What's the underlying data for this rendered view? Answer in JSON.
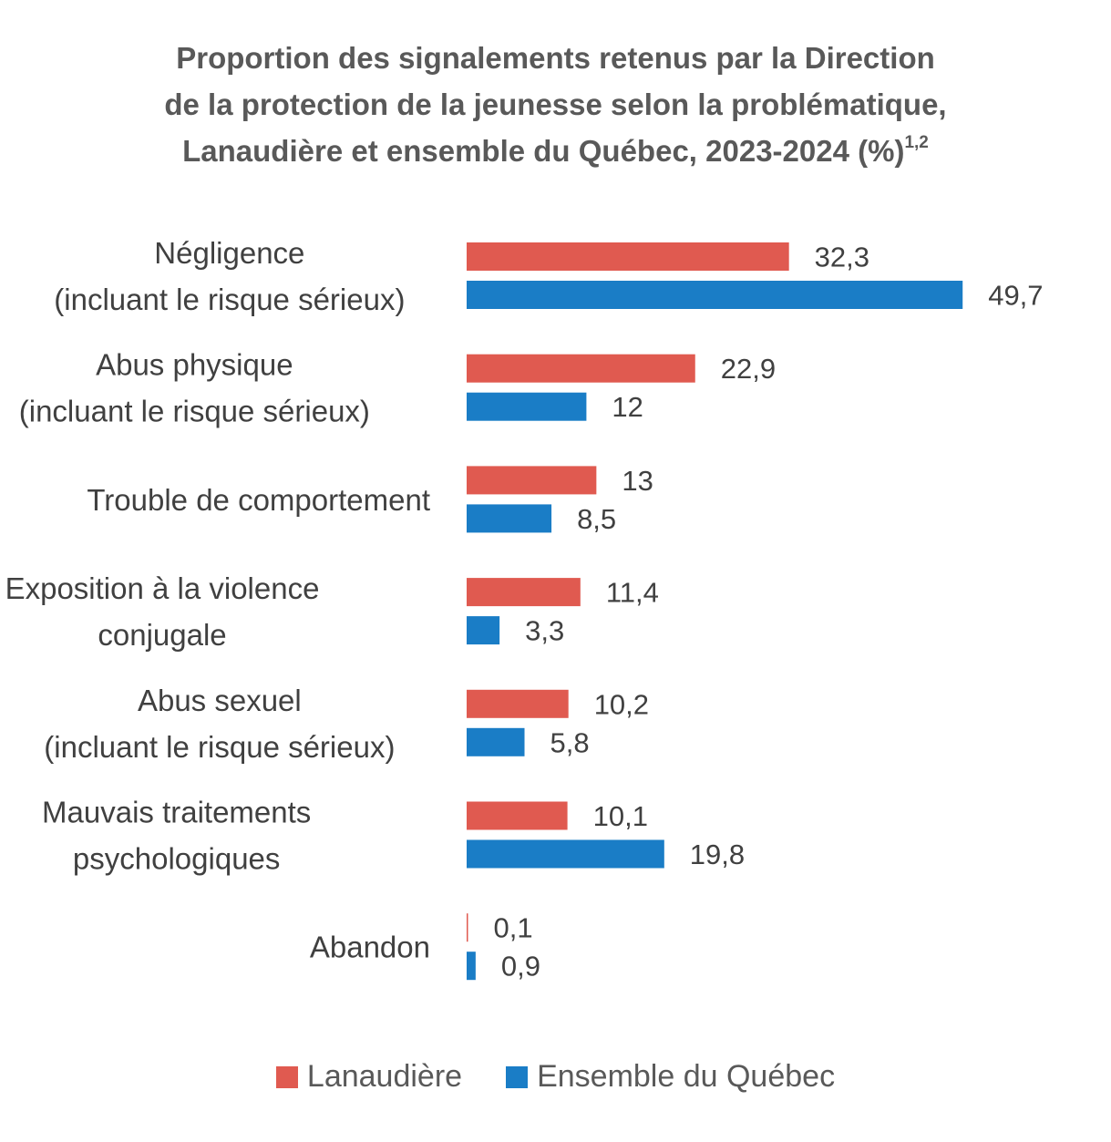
{
  "title": {
    "line1": "Proportion des signalements retenus par la Direction",
    "line2": "de la protection de la jeunesse selon la problématique,",
    "line3": "Lanaudière et ensemble du Québec, 2023-2024 (%)",
    "superscript": "1,2"
  },
  "chart_data": {
    "type": "bar",
    "orientation": "horizontal",
    "categories": [
      [
        "Négligence",
        "(incluant le risque sérieux)"
      ],
      [
        "Abus physique",
        "(incluant le risque sérieux)"
      ],
      [
        "Trouble de comportement"
      ],
      [
        "Exposition à la violence",
        "conjugale"
      ],
      [
        "Abus sexuel",
        "(incluant le risque sérieux)"
      ],
      [
        "Mauvais traitements",
        "psychologiques"
      ],
      [
        "Abandon"
      ]
    ],
    "series": [
      {
        "name": "Lanaudière",
        "color": "#e05a50",
        "values": [
          32.3,
          22.9,
          13,
          11.4,
          10.2,
          10.1,
          0.1
        ],
        "labels": [
          "32,3",
          "22,9",
          "13",
          "11,4",
          "10,2",
          "10,1",
          "0,1"
        ]
      },
      {
        "name": "Ensemble du Québec",
        "color": "#1a7dc6",
        "values": [
          49.7,
          12,
          8.5,
          3.3,
          5.8,
          19.8,
          0.9
        ],
        "labels": [
          "49,7",
          "12",
          "8,5",
          "3,3",
          "5,8",
          "19,8",
          "0,9"
        ]
      }
    ],
    "xlim": [
      0,
      49.7
    ],
    "grid": false,
    "legend_position": "bottom"
  },
  "legend": {
    "items": [
      {
        "label": "Lanaudière",
        "color": "#e05a50"
      },
      {
        "label": "Ensemble du Québec",
        "color": "#1a7dc6"
      }
    ]
  }
}
